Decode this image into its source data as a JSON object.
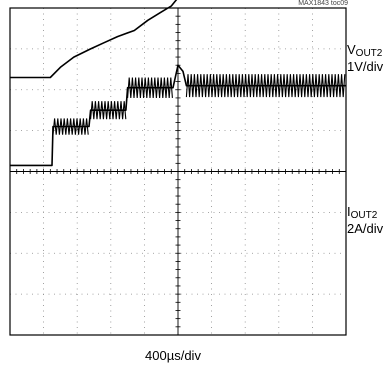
{
  "chart_data": {
    "type": "line",
    "figure_ref": "MAX1843 toc09",
    "x_label": "400µs/div",
    "grid": true,
    "x_divisions": 10,
    "y_divisions": 8,
    "x_range_divisions": [
      0,
      10
    ],
    "y_range_divisions": [
      -4,
      4
    ],
    "series": [
      {
        "name_prefix": "V",
        "name_sub": "OUT2",
        "scale": "1V/div",
        "color": "#000000",
        "points": [
          [
            0.0,
            2.3
          ],
          [
            1.2,
            2.3
          ],
          [
            1.5,
            2.55
          ],
          [
            1.9,
            2.8
          ],
          [
            2.4,
            3.0
          ],
          [
            2.8,
            3.15
          ],
          [
            3.2,
            3.3
          ],
          [
            3.7,
            3.45
          ],
          [
            4.1,
            3.7
          ],
          [
            4.5,
            3.9
          ],
          [
            4.8,
            4.05
          ],
          [
            5.05,
            4.3
          ],
          [
            5.3,
            4.5
          ],
          [
            7.0,
            4.5
          ],
          [
            10.0,
            4.5
          ]
        ]
      },
      {
        "name_prefix": "I",
        "name_sub": "OUT2",
        "scale": "2A/div",
        "color": "#000000",
        "points": [
          [
            0.0,
            0.15
          ],
          [
            1.25,
            0.15
          ],
          [
            1.28,
            1.1
          ],
          [
            2.35,
            1.1
          ],
          [
            2.4,
            1.5
          ],
          [
            3.45,
            1.5
          ],
          [
            3.5,
            2.05
          ],
          [
            4.85,
            2.05
          ],
          [
            5.0,
            2.6
          ],
          [
            5.15,
            2.45
          ],
          [
            5.25,
            2.1
          ],
          [
            10.0,
            2.1
          ]
        ],
        "ripple": [
          {
            "x": [
              1.28,
              2.35
            ],
            "amplitude": 0.2
          },
          {
            "x": [
              2.4,
              3.45
            ],
            "amplitude": 0.22
          },
          {
            "x": [
              3.5,
              4.85
            ],
            "amplitude": 0.25
          },
          {
            "x": [
              5.25,
              10.0
            ],
            "amplitude": 0.28
          }
        ]
      }
    ]
  }
}
